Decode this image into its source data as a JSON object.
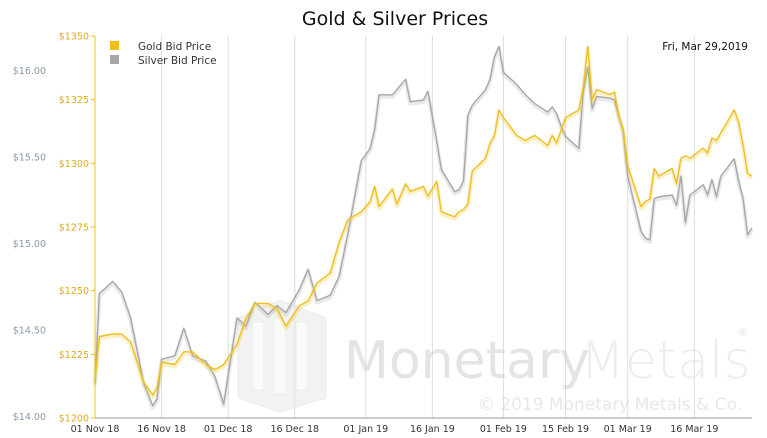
{
  "chart_data": {
    "type": "line",
    "title": "Gold & Silver Prices",
    "date_label": "Fri, Mar 29,2019",
    "watermark": {
      "brand_a": "Monetary",
      "brand_b": "Metals",
      "registered": "®",
      "copyright": "© 2019 Monetary Metals & Co."
    },
    "colors": {
      "gold": "#f0c020",
      "silver": "#a8a8a8",
      "gold_axis_text": "#e0ac10",
      "silver_axis_text": "#8a9aa8",
      "axis_text": "#333333",
      "grid": "#dddddd"
    },
    "legend": {
      "placement": "top-left",
      "items": [
        {
          "label": "Gold Bid Price",
          "color": "#f0c020"
        },
        {
          "label": "Silver Bid Price",
          "color": "#a8a8a8"
        }
      ]
    },
    "x_axis": {
      "start": "2018-11-01",
      "end": "2019-03-29",
      "ticks": [
        {
          "date": "2018-11-01",
          "label": "01 Nov 18"
        },
        {
          "date": "2018-11-16",
          "label": "16 Nov 18"
        },
        {
          "date": "2018-12-01",
          "label": "01 Dec 18"
        },
        {
          "date": "2018-12-16",
          "label": "16 Dec 18"
        },
        {
          "date": "2019-01-01",
          "label": "01 Jan 19"
        },
        {
          "date": "2019-01-16",
          "label": "16 Jan 19"
        },
        {
          "date": "2019-02-01",
          "label": "01 Feb 19"
        },
        {
          "date": "2019-02-15",
          "label": "15 Feb 19"
        },
        {
          "date": "2019-03-01",
          "label": "01 Mar 19"
        },
        {
          "date": "2019-03-16",
          "label": "16 Mar 19"
        }
      ]
    },
    "gold_axis": {
      "range": [
        1200,
        1350
      ],
      "ticks": [
        {
          "value": 1200,
          "label": "$1200"
        },
        {
          "value": 1225,
          "label": "$1225"
        },
        {
          "value": 1250,
          "label": "$1250"
        },
        {
          "value": 1275,
          "label": "$1275"
        },
        {
          "value": 1300,
          "label": "$1300"
        },
        {
          "value": 1325,
          "label": "$1325"
        },
        {
          "value": 1350,
          "label": "$1350"
        }
      ]
    },
    "silver_axis": {
      "range": [
        13.99,
        16.2
      ],
      "ticks": [
        {
          "value": 14.0,
          "label": "$14.00"
        },
        {
          "value": 14.5,
          "label": "$14.50"
        },
        {
          "value": 15.0,
          "label": "$15.00"
        },
        {
          "value": 15.5,
          "label": "$15.50"
        },
        {
          "value": 16.0,
          "label": "$16.00"
        }
      ]
    },
    "series": [
      {
        "name": "Gold Bid Price",
        "axis": "gold",
        "points": [
          [
            "2018-11-01",
            1215
          ],
          [
            "2018-11-02",
            1232
          ],
          [
            "2018-11-05",
            1233
          ],
          [
            "2018-11-07",
            1233
          ],
          [
            "2018-11-09",
            1230
          ],
          [
            "2018-11-12",
            1214
          ],
          [
            "2018-11-14",
            1209
          ],
          [
            "2018-11-15",
            1212
          ],
          [
            "2018-11-16",
            1222
          ],
          [
            "2018-11-19",
            1221
          ],
          [
            "2018-11-21",
            1226
          ],
          [
            "2018-11-23",
            1226
          ],
          [
            "2018-11-26",
            1221
          ],
          [
            "2018-11-28",
            1219
          ],
          [
            "2018-11-30",
            1221
          ],
          [
            "2018-12-03",
            1229
          ],
          [
            "2018-12-05",
            1239
          ],
          [
            "2018-12-07",
            1245
          ],
          [
            "2018-12-10",
            1245
          ],
          [
            "2018-12-12",
            1243
          ],
          [
            "2018-12-14",
            1236
          ],
          [
            "2018-12-17",
            1244
          ],
          [
            "2018-12-19",
            1246
          ],
          [
            "2018-12-21",
            1253
          ],
          [
            "2018-12-24",
            1257
          ],
          [
            "2018-12-26",
            1269
          ],
          [
            "2018-12-28",
            1278
          ],
          [
            "2018-12-31",
            1281
          ],
          [
            "2019-01-02",
            1285
          ],
          [
            "2019-01-03",
            1291
          ],
          [
            "2019-01-04",
            1283
          ],
          [
            "2019-01-07",
            1290
          ],
          [
            "2019-01-08",
            1284
          ],
          [
            "2019-01-10",
            1292
          ],
          [
            "2019-01-11",
            1289
          ],
          [
            "2019-01-14",
            1291
          ],
          [
            "2019-01-15",
            1287
          ],
          [
            "2019-01-17",
            1293
          ],
          [
            "2019-01-18",
            1281
          ],
          [
            "2019-01-21",
            1279
          ],
          [
            "2019-01-22",
            1281
          ],
          [
            "2019-01-23",
            1282
          ],
          [
            "2019-01-24",
            1284
          ],
          [
            "2019-01-25",
            1297
          ],
          [
            "2019-01-28",
            1302
          ],
          [
            "2019-01-29",
            1308
          ],
          [
            "2019-01-30",
            1311
          ],
          [
            "2019-01-31",
            1321
          ],
          [
            "2019-02-01",
            1318
          ],
          [
            "2019-02-04",
            1311
          ],
          [
            "2019-02-06",
            1309
          ],
          [
            "2019-02-08",
            1311
          ],
          [
            "2019-02-11",
            1307
          ],
          [
            "2019-02-12",
            1311
          ],
          [
            "2019-02-13",
            1308
          ],
          [
            "2019-02-14",
            1313
          ],
          [
            "2019-02-15",
            1318
          ],
          [
            "2019-02-18",
            1321
          ],
          [
            "2019-02-19",
            1330
          ],
          [
            "2019-02-20",
            1346
          ],
          [
            "2019-02-21",
            1325
          ],
          [
            "2019-02-22",
            1329
          ],
          [
            "2019-02-25",
            1327
          ],
          [
            "2019-02-26",
            1328
          ],
          [
            "2019-02-27",
            1319
          ],
          [
            "2019-02-28",
            1313
          ],
          [
            "2019-03-01",
            1299
          ],
          [
            "2019-03-04",
            1283
          ],
          [
            "2019-03-05",
            1285
          ],
          [
            "2019-03-06",
            1286
          ],
          [
            "2019-03-07",
            1298
          ],
          [
            "2019-03-08",
            1295
          ],
          [
            "2019-03-11",
            1298
          ],
          [
            "2019-03-12",
            1292
          ],
          [
            "2019-03-13",
            1302
          ],
          [
            "2019-03-14",
            1303
          ],
          [
            "2019-03-15",
            1302
          ],
          [
            "2019-03-18",
            1306
          ],
          [
            "2019-03-19",
            1304
          ],
          [
            "2019-03-20",
            1310
          ],
          [
            "2019-03-21",
            1309
          ],
          [
            "2019-03-22",
            1312
          ],
          [
            "2019-03-25",
            1321
          ],
          [
            "2019-03-26",
            1316
          ],
          [
            "2019-03-27",
            1307
          ],
          [
            "2019-03-28",
            1296
          ],
          [
            "2019-03-29",
            1295
          ]
        ]
      },
      {
        "name": "Silver Bid Price",
        "axis": "silver",
        "points": [
          [
            "2018-11-01",
            14.19
          ],
          [
            "2018-11-02",
            14.71
          ],
          [
            "2018-11-05",
            14.78
          ],
          [
            "2018-11-07",
            14.72
          ],
          [
            "2018-11-09",
            14.57
          ],
          [
            "2018-11-12",
            14.19
          ],
          [
            "2018-11-14",
            14.06
          ],
          [
            "2018-11-15",
            14.1
          ],
          [
            "2018-11-16",
            14.33
          ],
          [
            "2018-11-19",
            14.35
          ],
          [
            "2018-11-21",
            14.51
          ],
          [
            "2018-11-23",
            14.35
          ],
          [
            "2018-11-26",
            14.32
          ],
          [
            "2018-11-28",
            14.23
          ],
          [
            "2018-11-30",
            14.07
          ],
          [
            "2018-12-03",
            14.57
          ],
          [
            "2018-12-05",
            14.52
          ],
          [
            "2018-12-07",
            14.66
          ],
          [
            "2018-12-10",
            14.59
          ],
          [
            "2018-12-12",
            14.64
          ],
          [
            "2018-12-14",
            14.6
          ],
          [
            "2018-12-17",
            14.73
          ],
          [
            "2018-12-19",
            14.85
          ],
          [
            "2018-12-21",
            14.67
          ],
          [
            "2018-12-24",
            14.7
          ],
          [
            "2018-12-26",
            14.81
          ],
          [
            "2018-12-28",
            15.06
          ],
          [
            "2018-12-31",
            15.48
          ],
          [
            "2019-01-02",
            15.55
          ],
          [
            "2019-01-03",
            15.66
          ],
          [
            "2019-01-04",
            15.86
          ],
          [
            "2019-01-07",
            15.86
          ],
          [
            "2019-01-08",
            15.89
          ],
          [
            "2019-01-10",
            15.95
          ],
          [
            "2019-01-11",
            15.82
          ],
          [
            "2019-01-14",
            15.83
          ],
          [
            "2019-01-15",
            15.88
          ],
          [
            "2019-01-17",
            15.59
          ],
          [
            "2019-01-18",
            15.43
          ],
          [
            "2019-01-21",
            15.3
          ],
          [
            "2019-01-22",
            15.31
          ],
          [
            "2019-01-23",
            15.36
          ],
          [
            "2019-01-24",
            15.74
          ],
          [
            "2019-01-25",
            15.8
          ],
          [
            "2019-01-28",
            15.89
          ],
          [
            "2019-01-29",
            15.95
          ],
          [
            "2019-01-30",
            16.08
          ],
          [
            "2019-01-31",
            16.14
          ],
          [
            "2019-02-01",
            15.99
          ],
          [
            "2019-02-04",
            15.92
          ],
          [
            "2019-02-06",
            15.86
          ],
          [
            "2019-02-08",
            15.81
          ],
          [
            "2019-02-11",
            15.76
          ],
          [
            "2019-02-12",
            15.79
          ],
          [
            "2019-02-13",
            15.75
          ],
          [
            "2019-02-14",
            15.68
          ],
          [
            "2019-02-15",
            15.62
          ],
          [
            "2019-02-18",
            15.55
          ],
          [
            "2019-02-19",
            15.88
          ],
          [
            "2019-02-20",
            16.02
          ],
          [
            "2019-02-21",
            15.78
          ],
          [
            "2019-02-22",
            15.85
          ],
          [
            "2019-02-25",
            15.84
          ],
          [
            "2019-02-26",
            15.83
          ],
          [
            "2019-02-27",
            15.74
          ],
          [
            "2019-02-28",
            15.65
          ],
          [
            "2019-03-01",
            15.39
          ],
          [
            "2019-03-04",
            15.07
          ],
          [
            "2019-03-05",
            15.03
          ],
          [
            "2019-03-06",
            15.02
          ],
          [
            "2019-03-07",
            15.26
          ],
          [
            "2019-03-08",
            15.27
          ],
          [
            "2019-03-11",
            15.28
          ],
          [
            "2019-03-12",
            15.22
          ],
          [
            "2019-03-13",
            15.39
          ],
          [
            "2019-03-14",
            15.12
          ],
          [
            "2019-03-15",
            15.28
          ],
          [
            "2019-03-18",
            15.34
          ],
          [
            "2019-03-19",
            15.28
          ],
          [
            "2019-03-20",
            15.37
          ],
          [
            "2019-03-21",
            15.27
          ],
          [
            "2019-03-22",
            15.39
          ],
          [
            "2019-03-25",
            15.49
          ],
          [
            "2019-03-26",
            15.36
          ],
          [
            "2019-03-27",
            15.26
          ],
          [
            "2019-03-28",
            15.05
          ],
          [
            "2019-03-29",
            15.09
          ]
        ]
      }
    ]
  }
}
